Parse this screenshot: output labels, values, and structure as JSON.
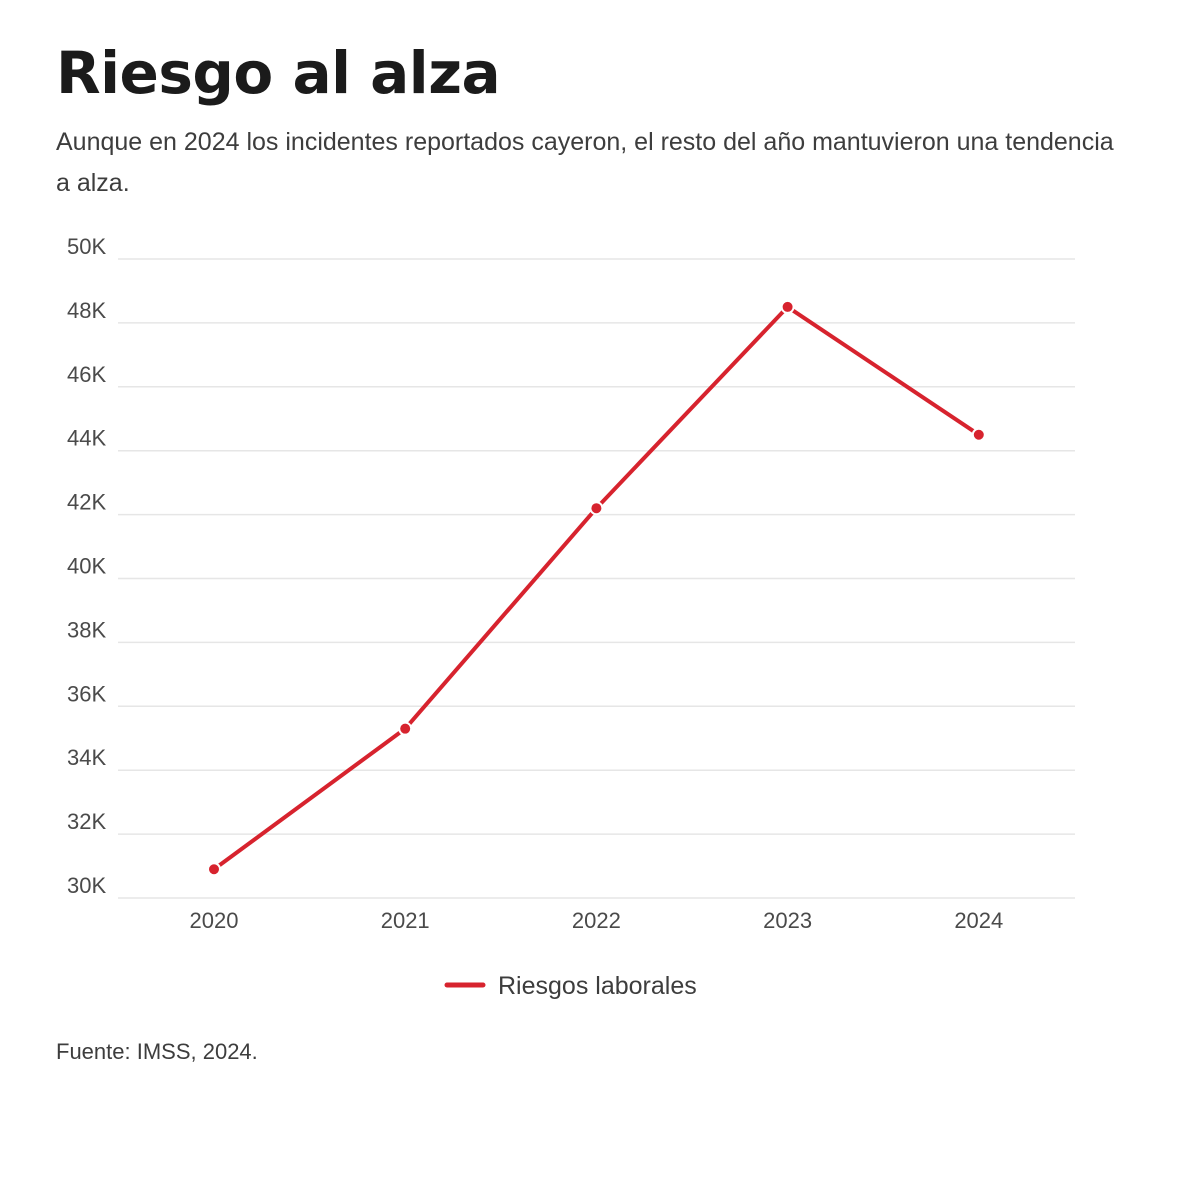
{
  "header": {
    "title": "Riesgo al alza",
    "subtitle": "Aunque en 2024 los incidentes reportados cayeron, el resto del año mantuvieron una tendencia a alza."
  },
  "footer": {
    "source": "Fuente: IMSS, 2024."
  },
  "colors": {
    "series": "#d7232e",
    "grid": "#e6e6e6",
    "tick_text": "#4a4a4a"
  },
  "chart_data": {
    "type": "line",
    "title": "Riesgo al alza",
    "subtitle": "Aunque en 2024 los incidentes reportados cayeron, el resto del año mantuvieron una tendencia a alza.",
    "xlabel": "",
    "ylabel": "",
    "x": [
      "2020",
      "2021",
      "2022",
      "2023",
      "2024"
    ],
    "ylim": [
      30000,
      50000
    ],
    "y_ticks": [
      50000,
      48000,
      46000,
      44000,
      42000,
      40000,
      38000,
      36000,
      34000,
      32000,
      30000
    ],
    "y_tick_labels": [
      "50K",
      "48K",
      "46K",
      "44K",
      "42K",
      "40K",
      "38K",
      "36K",
      "34K",
      "32K",
      "30K"
    ],
    "grid": true,
    "legend_position": "bottom-center",
    "series": [
      {
        "name": "Riesgos laborales",
        "color": "#d7232e",
        "values": [
          30900,
          35300,
          42200,
          48500,
          44500
        ]
      }
    ]
  }
}
